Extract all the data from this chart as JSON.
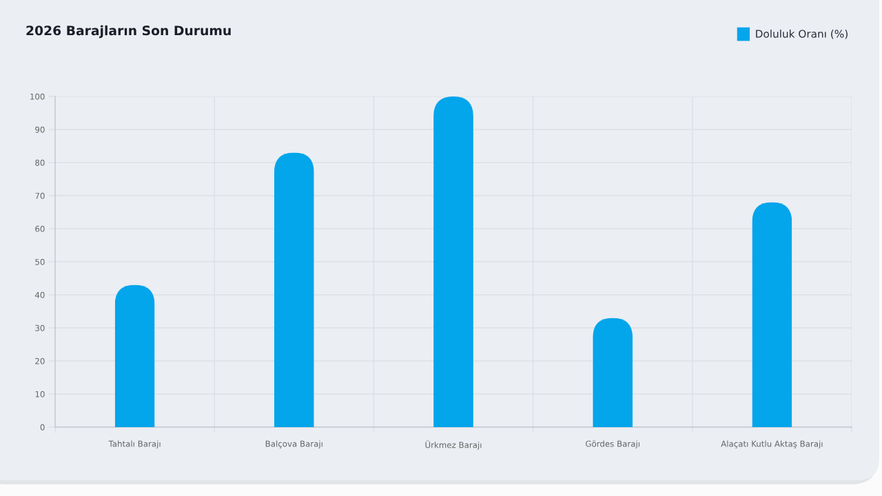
{
  "chart_data": {
    "type": "bar",
    "title": "2026 Barajların Son Durumu",
    "categories": [
      "Tahtalı Barajı",
      "Balçova Barajı",
      "Ürkmez Barajı",
      "Gördes Barajı",
      "Alaçatı Kutlu Aktaş Barajı"
    ],
    "series": [
      {
        "name": "Doluluk Oranı (%)",
        "color": "#03a5eb",
        "values": [
          43,
          83,
          100,
          33,
          68
        ]
      }
    ],
    "ylim": [
      0,
      100
    ],
    "yticks": [
      0,
      10,
      20,
      30,
      40,
      50,
      60,
      70,
      80,
      90,
      100
    ],
    "grid": true,
    "legend": "top right"
  }
}
